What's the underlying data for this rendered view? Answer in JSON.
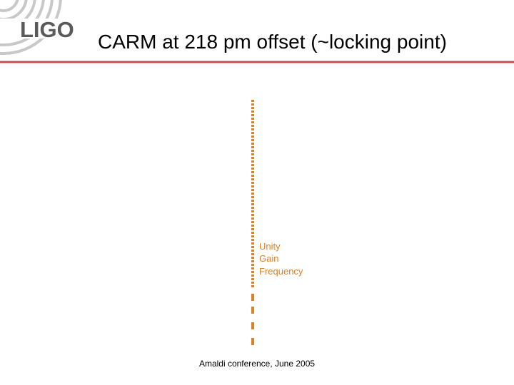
{
  "header": {
    "logo": "LIGO",
    "title": "CARM at 218 pm offset (~locking point)"
  },
  "annotation": {
    "lines": [
      "Unity",
      "Gain",
      "Frequency"
    ]
  },
  "footer": "Amaldi conference, June 2005"
}
